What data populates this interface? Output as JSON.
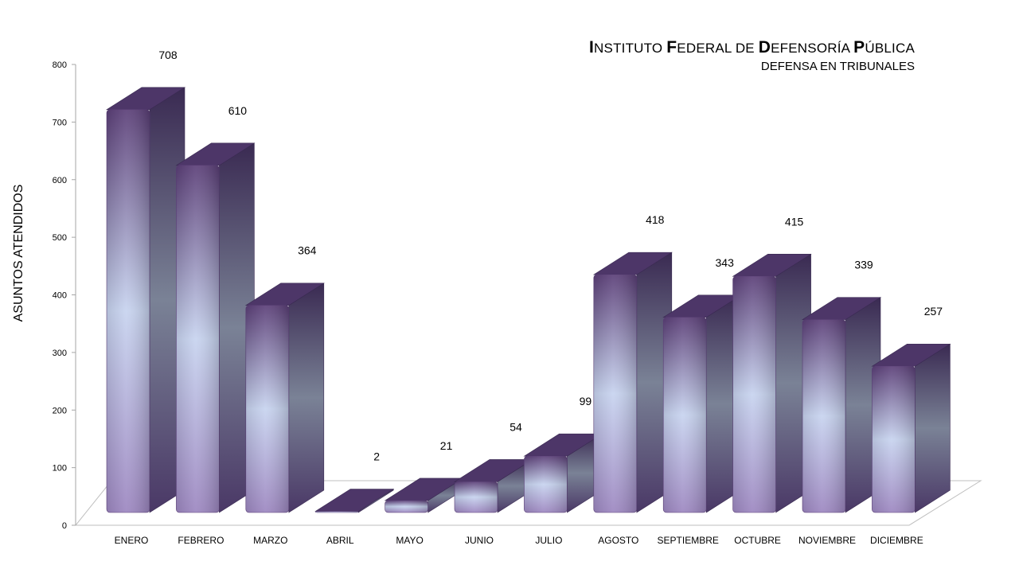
{
  "chart_data": {
    "type": "bar",
    "title_parts": [
      {
        "cap": "I",
        "rest": "NSTITUTO "
      },
      {
        "cap": "F",
        "rest": "EDERAL DE "
      },
      {
        "cap": "D",
        "rest": "EFENSORÍA "
      },
      {
        "cap": "P",
        "rest": "ÚBLICA"
      }
    ],
    "subtitle": "DEFENSA EN TRIBUNALES",
    "ylabel": "ASUNTOS ATENDIDOS",
    "xlabel": "",
    "categories": [
      "ENERO",
      "FEBRERO",
      "MARZO",
      "ABRIL",
      "MAYO",
      "JUNIO",
      "JULIO",
      "AGOSTO",
      "SEPTIEMBRE",
      "OCTUBRE",
      "NOVIEMBRE",
      "DICIEMBRE"
    ],
    "values": [
      708,
      610,
      364,
      2,
      21,
      54,
      99,
      418,
      343,
      415,
      339,
      257
    ],
    "ylim": [
      0,
      800
    ],
    "yticks": [
      0,
      100,
      200,
      300,
      400,
      500,
      600,
      700,
      800
    ],
    "grid": false,
    "legend": "none",
    "colors": {
      "bar_dark": "#5b3f78",
      "bar_mid": "#9c86c0",
      "bar_light": "#c7d3ef",
      "side_dark": "#3a2a52",
      "side_light": "#7a8296",
      "top": "#4d3668"
    }
  }
}
